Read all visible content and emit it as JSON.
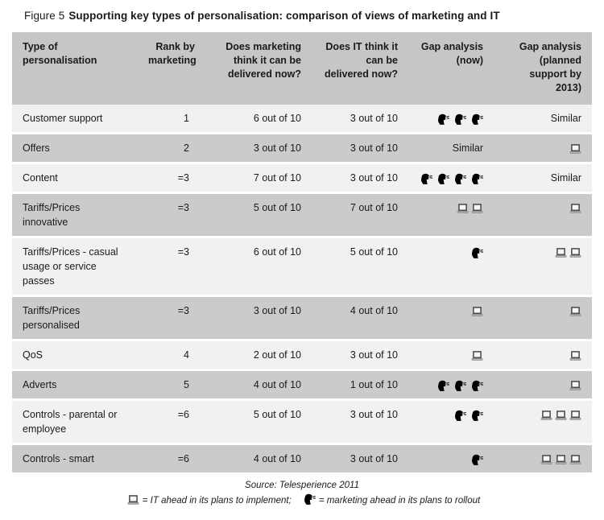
{
  "title": {
    "prefix": "Figure 5",
    "text": "Supporting key types of personalisation: comparison of views of marketing and IT"
  },
  "colors": {
    "header_bg": "#c6c6c6",
    "row_dark": "#cbcbcb",
    "row_light": "#f1f1f1",
    "separator": "#ffffff",
    "text": "#1a1a1a"
  },
  "table": {
    "column_keys": [
      "type",
      "rank",
      "marketing_score",
      "it_score",
      "gap_now",
      "gap_2013"
    ],
    "columns": [
      {
        "label": "Type of\npersonalisation"
      },
      {
        "label": "Rank by\nmarketing"
      },
      {
        "label": "Does marketing\nthink it can be\ndelivered now?"
      },
      {
        "label": "Does IT think it\ncan be\ndelivered now?"
      },
      {
        "label": "Gap analysis\n(now)"
      },
      {
        "label": "Gap analysis\n(planned\nsupport by\n2013)"
      }
    ],
    "rows": [
      {
        "type": "Customer support",
        "rank": "1",
        "marketing_score": "6 out of 10",
        "it_score": "3 out of 10",
        "gap_now": {
          "icon": "speaking-head-icon",
          "count": 3
        },
        "gap_2013": "Similar"
      },
      {
        "type": "Offers",
        "rank": "2",
        "marketing_score": "3 out of 10",
        "it_score": "3 out of 10",
        "gap_now": "Similar",
        "gap_2013": {
          "icon": "laptop-icon",
          "count": 1
        }
      },
      {
        "type": "Content",
        "rank": "=3",
        "marketing_score": "7 out of 10",
        "it_score": "3 out of 10",
        "gap_now": {
          "icon": "speaking-head-icon",
          "count": 4
        },
        "gap_2013": "Similar"
      },
      {
        "type": "Tariffs/Prices\ninnovative",
        "rank": "=3",
        "marketing_score": "5 out of 10",
        "it_score": "7 out of 10",
        "gap_now": {
          "icon": "laptop-icon",
          "count": 2
        },
        "gap_2013": {
          "icon": "laptop-icon",
          "count": 1
        }
      },
      {
        "type": "Tariffs/Prices - casual\nusage or service\npasses",
        "rank": "=3",
        "marketing_score": "6 out of 10",
        "it_score": "5 out of 10",
        "gap_now": {
          "icon": "speaking-head-icon",
          "count": 1
        },
        "gap_2013": {
          "icon": "laptop-icon",
          "count": 2
        }
      },
      {
        "type": "Tariffs/Prices\npersonalised",
        "rank": "=3",
        "marketing_score": "3 out of 10",
        "it_score": "4 out of 10",
        "gap_now": {
          "icon": "laptop-icon",
          "count": 1
        },
        "gap_2013": {
          "icon": "laptop-icon",
          "count": 1
        }
      },
      {
        "type": "QoS",
        "rank": "4",
        "marketing_score": "2 out of 10",
        "it_score": "3 out of 10",
        "gap_now": {
          "icon": "laptop-icon",
          "count": 1
        },
        "gap_2013": {
          "icon": "laptop-icon",
          "count": 1
        }
      },
      {
        "type": "Adverts",
        "rank": "5",
        "marketing_score": "4 out of 10",
        "it_score": "1 out of 10",
        "gap_now": {
          "icon": "speaking-head-icon",
          "count": 3
        },
        "gap_2013": {
          "icon": "laptop-icon",
          "count": 1
        }
      },
      {
        "type": "Controls - parental or\nemployee",
        "rank": "=6",
        "marketing_score": "5 out of 10",
        "it_score": "3 out of 10",
        "gap_now": {
          "icon": "speaking-head-icon",
          "count": 2
        },
        "gap_2013": {
          "icon": "laptop-icon",
          "count": 3
        }
      },
      {
        "type": "Controls - smart",
        "rank": "=6",
        "marketing_score": "4 out of 10",
        "it_score": "3 out of 10",
        "gap_now": {
          "icon": "speaking-head-icon",
          "count": 1
        },
        "gap_2013": {
          "icon": "laptop-icon",
          "count": 3
        }
      }
    ]
  },
  "footer": {
    "source": "Source: Telesperience 2011",
    "legend": {
      "it_icon": "laptop-icon",
      "it_text": "= IT ahead in its plans to implement;",
      "marketing_icon": "speaking-head-icon",
      "marketing_text": "= marketing ahead in its plans to rollout"
    }
  }
}
